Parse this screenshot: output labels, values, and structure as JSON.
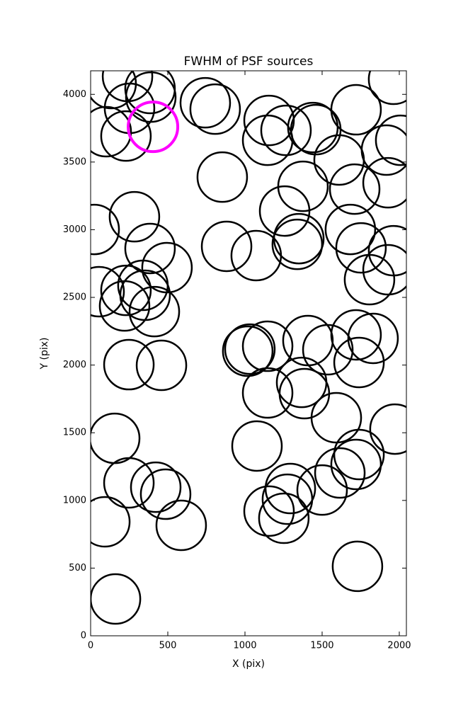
{
  "chart_data": {
    "type": "scatter",
    "title": "FWHM of PSF sources",
    "x_label": "X (pix)",
    "y_label": "Y (pix)",
    "xlim": [
      0,
      2046
    ],
    "ylim": [
      0,
      4174
    ],
    "xticks": [
      0,
      500,
      1000,
      1500,
      2000
    ],
    "yticks": [
      0,
      500,
      1000,
      1500,
      2000,
      2500,
      3000,
      3500,
      4000
    ],
    "marker": "open-circle",
    "marker_radius": 35,
    "series": [
      {
        "color": "#000000",
        "x": [
          133,
          239,
          385,
          390,
          252,
          101,
          229,
          743,
          807,
          1156,
          1147,
          1266,
          1440,
          1459,
          1720,
          1963,
          2009,
          1917,
          1610,
          1927,
          1711,
          1376,
          1257,
          853,
          284,
          23,
          385,
          495,
          881,
          1073,
          1349,
          1339,
          1683,
          1752,
          1963,
          1927,
          1807,
          55,
          229,
          339,
          353,
          220,
          413,
          248,
          459,
          1032,
          1018,
          1147,
          1408,
          1537,
          1720,
          1830,
          1739,
          1367,
          1385,
          1147,
          1592,
          1972,
          156,
          1078,
          1739,
          1720,
          1615,
          1500,
          1294,
          1275,
          1156,
          1252,
          248,
          422,
          486,
          587,
          92,
          1729,
          161
        ],
        "y": [
          4080,
          4132,
          4043,
          3980,
          3897,
          3724,
          3692,
          3938,
          3891,
          3807,
          3661,
          3734,
          3755,
          3739,
          3886,
          4111,
          3661,
          3588,
          3515,
          3347,
          3300,
          3321,
          3138,
          3389,
          3096,
          3002,
          2861,
          2720,
          2877,
          2809,
          2934,
          2892,
          3002,
          2866,
          2845,
          2704,
          2631,
          2542,
          2552,
          2589,
          2516,
          2437,
          2395,
          2003,
          1998,
          2118,
          2103,
          2139,
          2181,
          2113,
          2223,
          2197,
          2019,
          1872,
          1789,
          1794,
          1611,
          1527,
          1459,
          1402,
          1339,
          1266,
          1203,
          1077,
          1088,
          1009,
          921,
          868,
          1130,
          1098,
          1046,
          816,
          842,
          513,
          272
        ]
      },
      {
        "color": "#ff00ff",
        "x": [
          404
        ],
        "y": [
          3760
        ]
      }
    ]
  }
}
